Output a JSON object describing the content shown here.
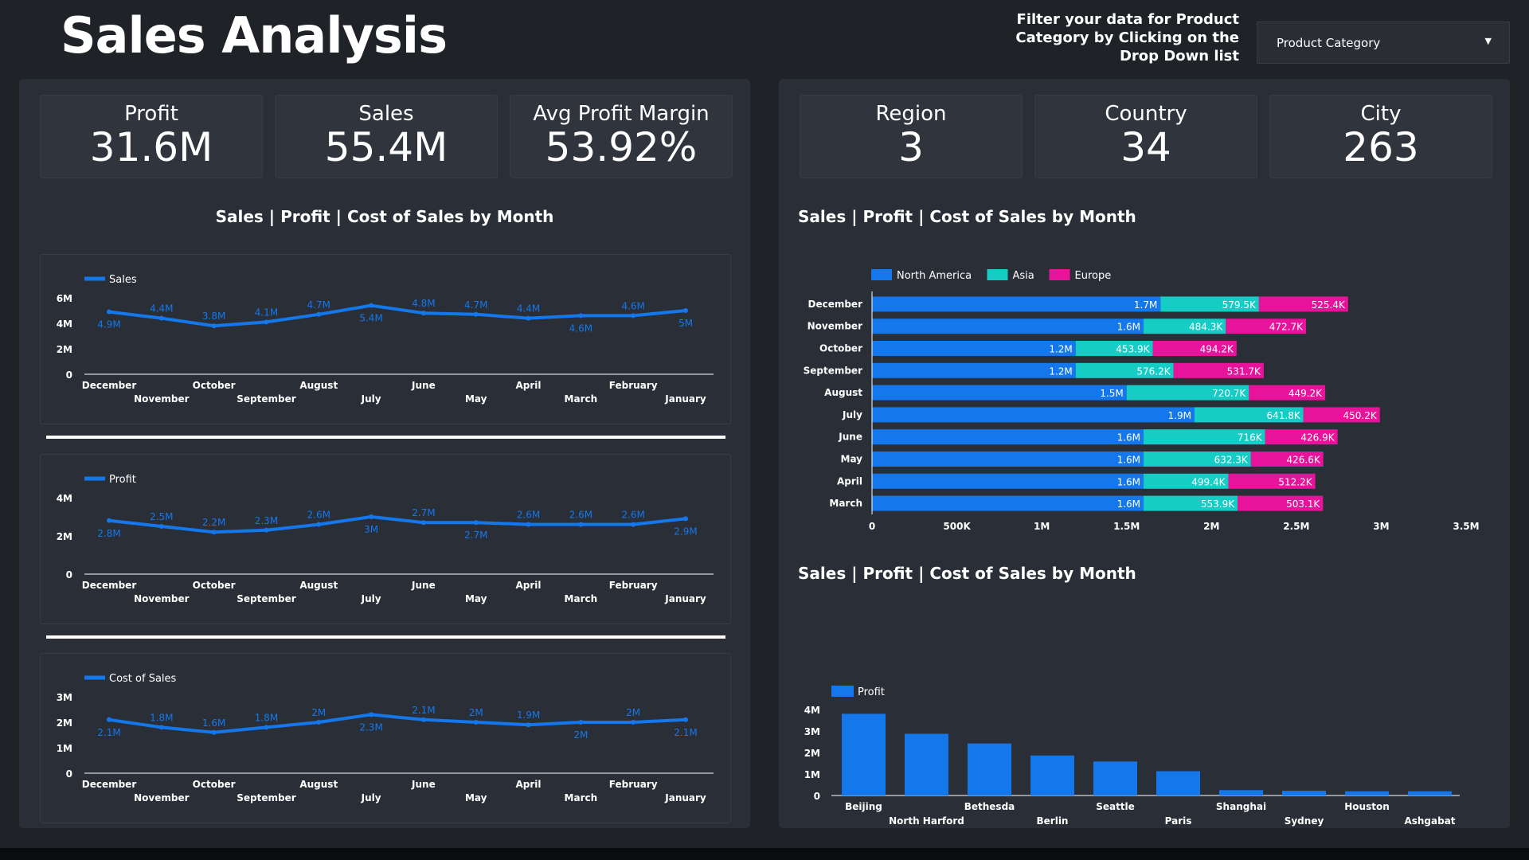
{
  "header": {
    "title": "Sales Analysis",
    "filter_text": "Filter your data for Product Category by Clicking on the Drop Down list",
    "dropdown_label": "Product Category"
  },
  "colors": {
    "blue": "#1477ec",
    "teal": "#16cdc6",
    "magenta": "#e7139a",
    "panel": "#2a2f37",
    "axis": "#ffffff"
  },
  "kpis_left": [
    {
      "label": "Profit",
      "value": "31.6M"
    },
    {
      "label": "Sales",
      "value": "55.4M"
    },
    {
      "label": "Avg Profit Margin",
      "value": "53.92%"
    }
  ],
  "kpis_right": [
    {
      "label": "Region",
      "value": "3"
    },
    {
      "label": "Country",
      "value": "34"
    },
    {
      "label": "City",
      "value": "263"
    }
  ],
  "section_titles": {
    "left": "Sales | Profit | Cost of Sales by Month",
    "right_top": "Sales | Profit | Cost of Sales by Month",
    "right_bottom": "Sales | Profit | Cost of Sales by Month"
  },
  "chart_data": [
    {
      "type": "line",
      "categories": [
        "December",
        "November",
        "October",
        "September",
        "August",
        "July",
        "June",
        "May",
        "April",
        "March",
        "February",
        "January"
      ],
      "series": [
        {
          "name": "Sales",
          "values": [
            4.9,
            4.4,
            3.8,
            4.1,
            4.7,
            5.4,
            4.8,
            4.7,
            4.4,
            4.6,
            4.6,
            5.0
          ],
          "labels": [
            "4.9M",
            "4.4M",
            "3.8M",
            "4.1M",
            "4.7M",
            "5.4M",
            "4.8M",
            "4.7M",
            "4.4M",
            "4.6M",
            "4.6M",
            "5M"
          ]
        }
      ],
      "yticks": [
        "0",
        "2M",
        "4M",
        "6M"
      ],
      "ylim": [
        0,
        6
      ],
      "unit": "M"
    },
    {
      "type": "line",
      "categories": [
        "December",
        "November",
        "October",
        "September",
        "August",
        "July",
        "June",
        "May",
        "April",
        "March",
        "February",
        "January"
      ],
      "series": [
        {
          "name": "Profit",
          "values": [
            2.8,
            2.5,
            2.2,
            2.3,
            2.6,
            3.0,
            2.7,
            2.7,
            2.6,
            2.6,
            2.6,
            2.9
          ],
          "labels": [
            "2.8M",
            "2.5M",
            "2.2M",
            "2.3M",
            "2.6M",
            "3M",
            "2.7M",
            "2.7M",
            "2.6M",
            "2.6M",
            "2.6M",
            "2.9M"
          ]
        }
      ],
      "yticks": [
        "0",
        "2M",
        "4M"
      ],
      "ylim": [
        0,
        4
      ],
      "unit": "M"
    },
    {
      "type": "line",
      "categories": [
        "December",
        "November",
        "October",
        "September",
        "August",
        "July",
        "June",
        "May",
        "April",
        "March",
        "February",
        "January"
      ],
      "series": [
        {
          "name": "Cost of Sales",
          "values": [
            2.1,
            1.8,
            1.6,
            1.8,
            2.0,
            2.3,
            2.1,
            2.0,
            1.9,
            2.0,
            2.0,
            2.1
          ],
          "labels": [
            "2.1M",
            "1.8M",
            "1.6M",
            "1.8M",
            "2M",
            "2.3M",
            "2.1M",
            "2M",
            "1.9M",
            "2M",
            "2M",
            "2.1M"
          ]
        }
      ],
      "yticks": [
        "0",
        "1M",
        "2M",
        "3M"
      ],
      "ylim": [
        0,
        3
      ],
      "unit": "M"
    },
    {
      "type": "bar",
      "orientation": "horizontal",
      "stacked": true,
      "categories": [
        "December",
        "November",
        "October",
        "September",
        "August",
        "July",
        "June",
        "May",
        "April",
        "March"
      ],
      "series": [
        {
          "name": "North America",
          "values": [
            1700000,
            1600000,
            1200000,
            1200000,
            1500000,
            1900000,
            1600000,
            1600000,
            1600000,
            1600000
          ],
          "labels": [
            "1.7M",
            "1.6M",
            "1.2M",
            "1.2M",
            "1.5M",
            "1.9M",
            "1.6M",
            "1.6M",
            "1.6M",
            "1.6M"
          ]
        },
        {
          "name": "Asia",
          "values": [
            579500,
            484300,
            453900,
            576200,
            720700,
            641800,
            716000,
            632300,
            499400,
            553900
          ],
          "labels": [
            "579.5K",
            "484.3K",
            "453.9K",
            "576.2K",
            "720.7K",
            "641.8K",
            "716K",
            "632.3K",
            "499.4K",
            "553.9K"
          ]
        },
        {
          "name": "Europe",
          "values": [
            525400,
            472700,
            494200,
            531700,
            449200,
            450200,
            426900,
            426600,
            512200,
            503100
          ],
          "labels": [
            "525.4K",
            "472.7K",
            "494.2K",
            "531.7K",
            "449.2K",
            "450.2K",
            "426.9K",
            "426.6K",
            "512.2K",
            "503.1K"
          ]
        }
      ],
      "xticks": [
        "0",
        "500K",
        "1M",
        "1.5M",
        "2M",
        "2.5M",
        "3M",
        "3.5M"
      ],
      "xlim": [
        0,
        3500000
      ],
      "legend": "top-left"
    },
    {
      "type": "bar",
      "categories": [
        "Beijing",
        "North Harford",
        "Bethesda",
        "Berlin",
        "Seattle",
        "Paris",
        "Shanghai",
        "Sydney",
        "Houston",
        "Ashgabat"
      ],
      "series": [
        {
          "name": "Profit",
          "values": [
            3.8,
            2.87,
            2.42,
            1.86,
            1.58,
            1.13,
            0.25,
            0.22,
            0.2,
            0.2
          ]
        }
      ],
      "yticks": [
        "0",
        "1M",
        "2M",
        "3M",
        "4M"
      ],
      "ylim": [
        0,
        4
      ],
      "unit": "M",
      "legend": "top-left"
    }
  ]
}
